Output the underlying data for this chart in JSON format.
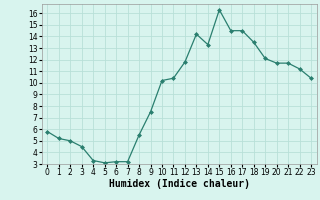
{
  "x": [
    0,
    1,
    2,
    3,
    4,
    5,
    6,
    7,
    8,
    9,
    10,
    11,
    12,
    13,
    14,
    15,
    16,
    17,
    18,
    19,
    20,
    21,
    22,
    23
  ],
  "y": [
    5.8,
    5.2,
    5.0,
    4.5,
    3.3,
    3.1,
    3.2,
    3.2,
    5.5,
    7.5,
    10.2,
    10.4,
    11.8,
    14.2,
    13.3,
    16.3,
    14.5,
    14.5,
    13.5,
    12.1,
    11.7,
    11.7,
    11.2,
    10.4
  ],
  "line_color": "#2a7f6f",
  "bg_color": "#d8f4ee",
  "grid_color": "#b8e0d8",
  "xlabel": "Humidex (Indice chaleur)",
  "xlim": [
    -0.5,
    23.5
  ],
  "ylim": [
    3,
    16.8
  ],
  "yticks": [
    3,
    4,
    5,
    6,
    7,
    8,
    9,
    10,
    11,
    12,
    13,
    14,
    15,
    16
  ],
  "xticks": [
    0,
    1,
    2,
    3,
    4,
    5,
    6,
    7,
    8,
    9,
    10,
    11,
    12,
    13,
    14,
    15,
    16,
    17,
    18,
    19,
    20,
    21,
    22,
    23
  ],
  "tick_fontsize": 5.5,
  "xlabel_fontsize": 7,
  "marker": "D",
  "marker_size": 2.0,
  "linewidth": 0.9
}
